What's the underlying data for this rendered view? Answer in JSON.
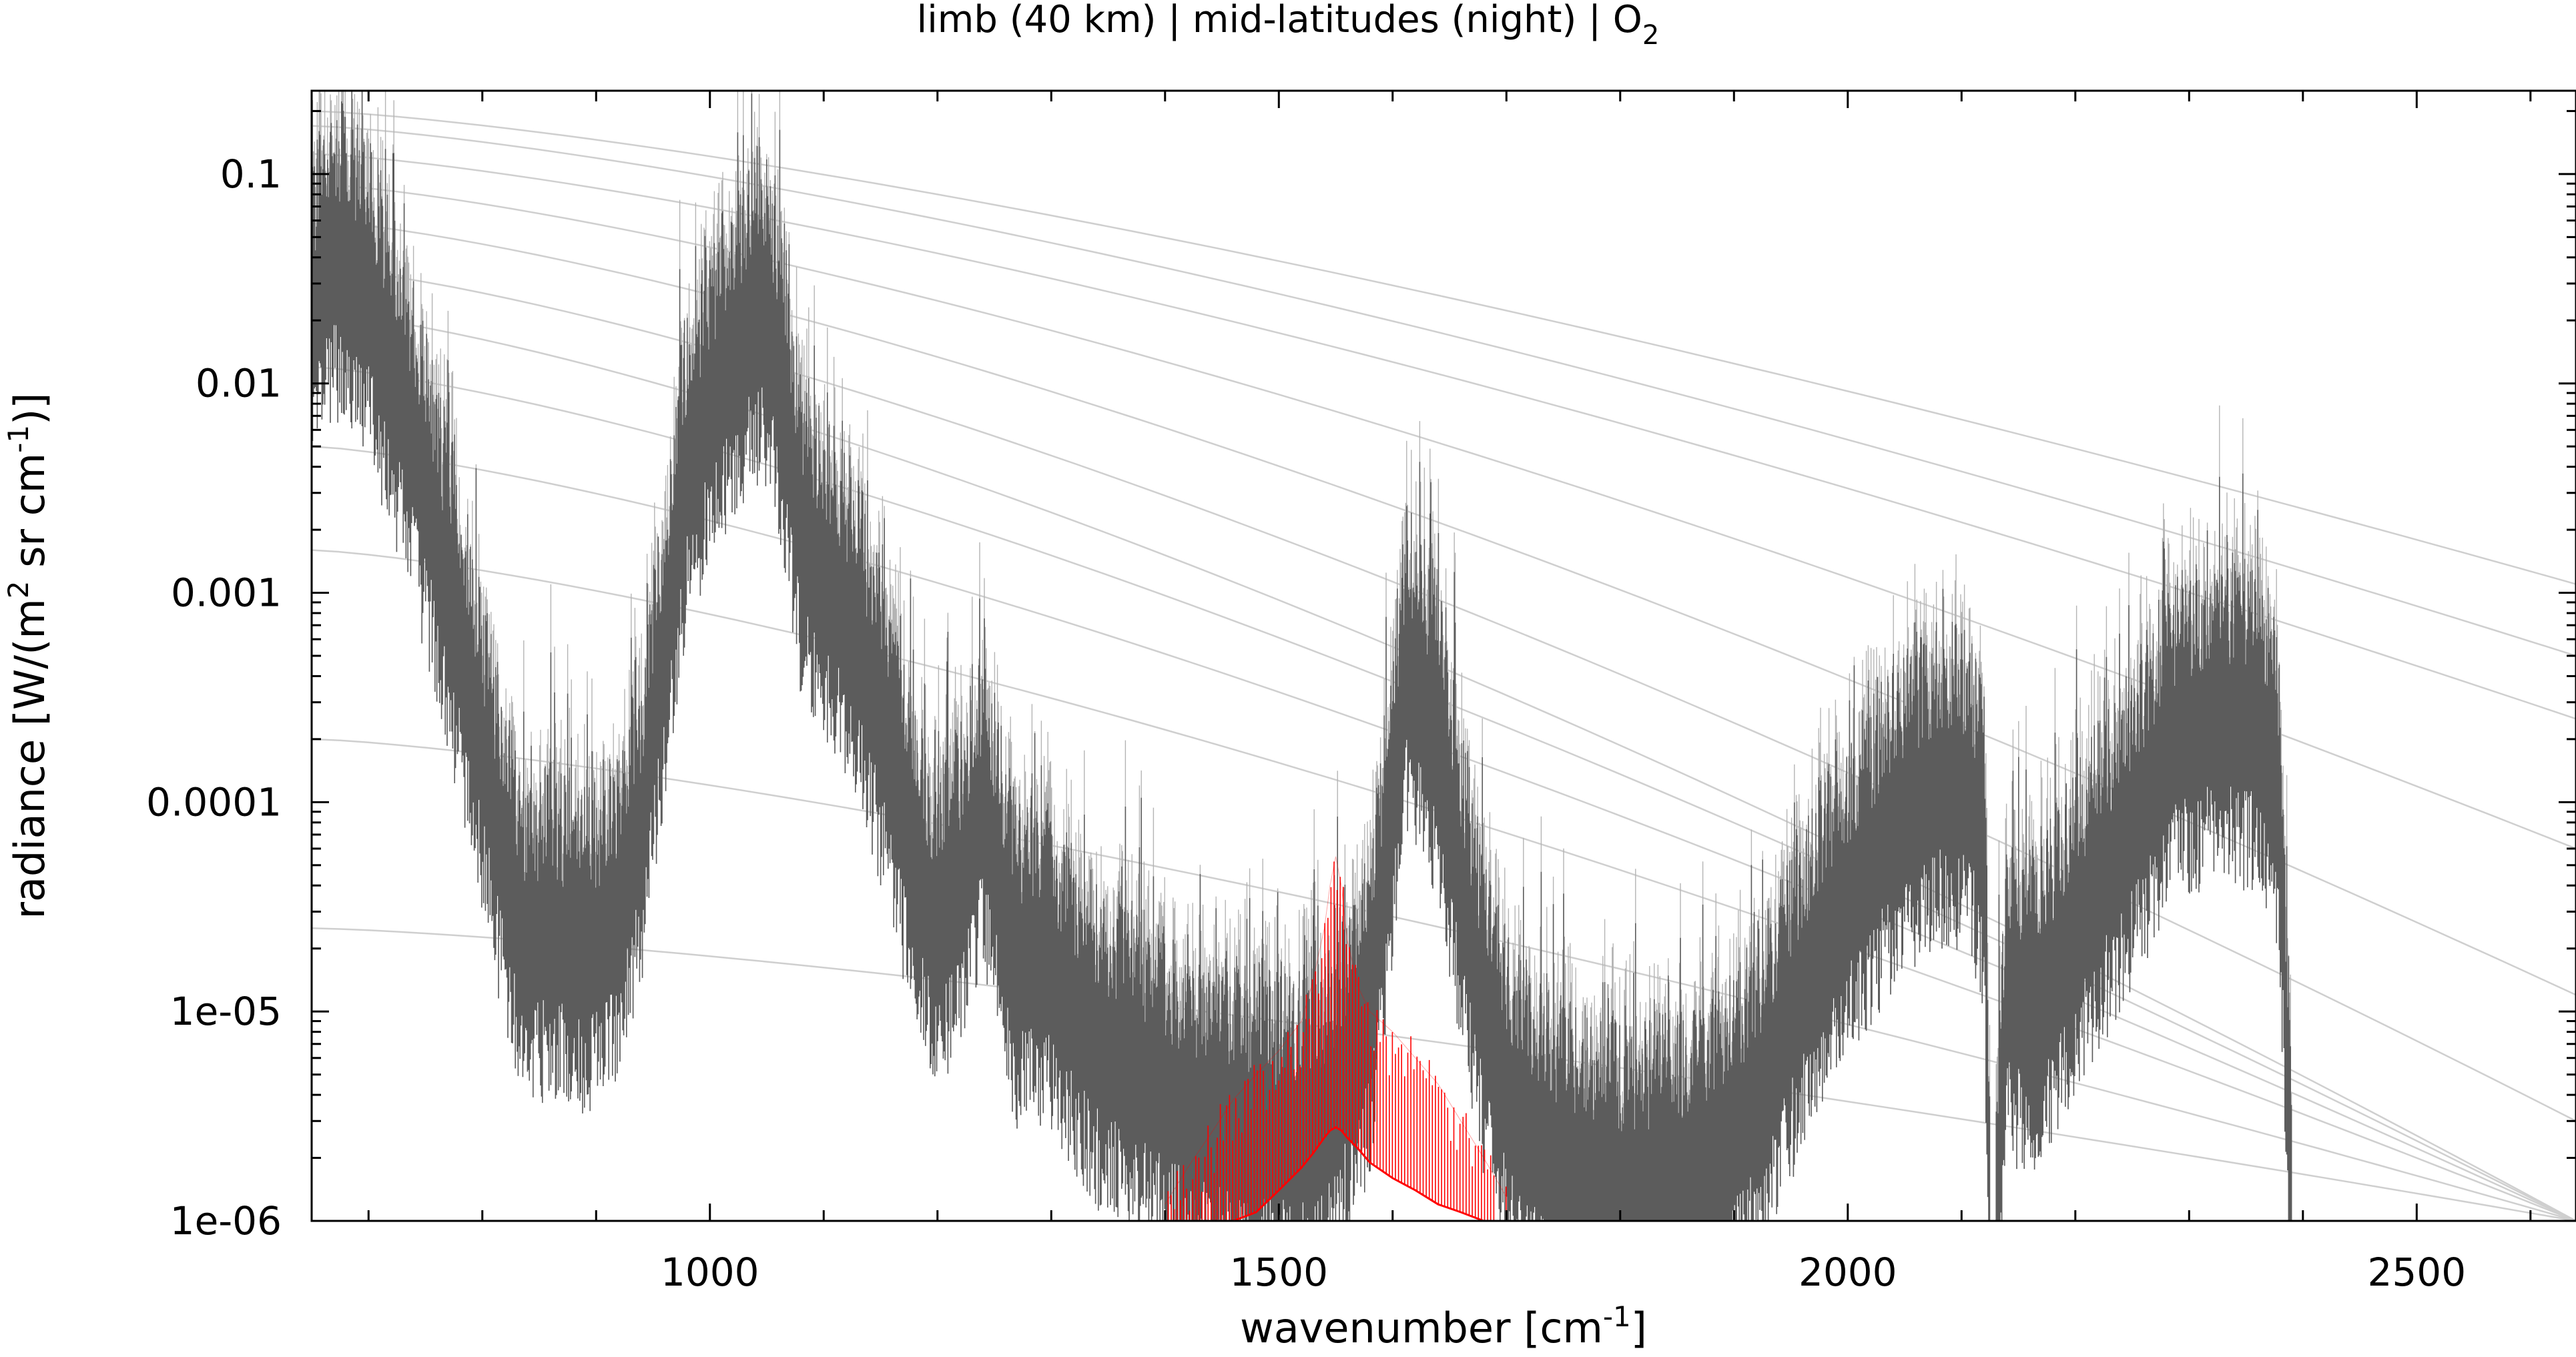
{
  "chart_data": {
    "type": "line",
    "title": {
      "main": "limb (40 km) | mid-latitudes (night) | O",
      "subscript": "2"
    },
    "xlabel": {
      "main": "wavenumber [cm",
      "superscript": "-1",
      "suffix": "]"
    },
    "ylabel": {
      "part1": "radiance [W/(m",
      "sup1": "2",
      "part2": " sr cm",
      "sup2": "-1",
      "part3": ")]"
    },
    "xlim": [
      650,
      2640
    ],
    "ylim": [
      1e-06,
      0.25
    ],
    "yscale": "log",
    "grid": false,
    "legend": "none",
    "x_ticks": [
      {
        "value": 1000,
        "label": "1000"
      },
      {
        "value": 1500,
        "label": "1500"
      },
      {
        "value": 2000,
        "label": "2000"
      },
      {
        "value": 2500,
        "label": "2500"
      }
    ],
    "y_ticks": [
      {
        "value": 0.1,
        "label": "0.1"
      },
      {
        "value": 0.01,
        "label": "0.01"
      },
      {
        "value": 0.001,
        "label": "0.001"
      },
      {
        "value": 0.0001,
        "label": "0.0001"
      },
      {
        "value": 1e-05,
        "label": "1e-05"
      },
      {
        "value": 1e-06,
        "label": "1e-06"
      }
    ],
    "colors": {
      "total_spectrum": "#5c5c5c",
      "total_spectrum_light": "#b4b4b4",
      "gas_spectrum": "#ff0000",
      "planck_curves": "#cfcfcf",
      "axis": "#000000"
    },
    "series": [
      {
        "role": "total",
        "x": [
          650,
          665,
          680,
          700,
          720,
          740,
          760,
          780,
          800,
          820,
          840,
          860,
          880,
          900,
          920,
          940,
          960,
          980,
          1000,
          1020,
          1040,
          1050,
          1060,
          1070,
          1080,
          1100,
          1120,
          1140,
          1160,
          1180,
          1200,
          1220,
          1240,
          1260,
          1270,
          1280,
          1300,
          1320,
          1340,
          1360,
          1380,
          1400,
          1420,
          1440,
          1460,
          1480,
          1500,
          1520,
          1540,
          1560,
          1580,
          1600,
          1610,
          1620,
          1640,
          1660,
          1680,
          1700,
          1720,
          1740,
          1760,
          1780,
          1800,
          1820,
          1840,
          1860,
          1880,
          1900,
          1920,
          1940,
          1960,
          1980,
          2000,
          2020,
          2040,
          2060,
          2080,
          2100,
          2110,
          2120,
          2125,
          2130,
          2140,
          2160,
          2180,
          2200,
          2220,
          2240,
          2260,
          2280,
          2300,
          2320,
          2340,
          2360,
          2370,
          2380,
          2390,
          2400,
          2420,
          2440,
          2460,
          2480,
          2500,
          2520,
          2540,
          2560,
          2580,
          2600,
          2620,
          2640
        ],
        "y_center": [
          0.02,
          0.04,
          0.04,
          0.025,
          0.012,
          0.005,
          0.0018,
          0.0006,
          0.00018,
          5e-05,
          2e-05,
          2.5e-05,
          2e-05,
          2e-05,
          3e-05,
          8e-05,
          0.0006,
          0.004,
          0.008,
          0.014,
          0.02,
          0.02,
          0.012,
          0.005,
          0.002,
          0.0012,
          0.0008,
          0.0004,
          0.00015,
          5e-05,
          2.5e-05,
          4e-05,
          0.0001,
          3e-05,
          1.5e-05,
          2e-05,
          1.5e-05,
          1e-05,
          7e-06,
          6e-06,
          5e-06,
          4e-06,
          3.5e-06,
          3e-06,
          2.8e-06,
          2.6e-06,
          2.5e-06,
          2.6e-06,
          3e-06,
          5e-06,
          1e-05,
          0.0001,
          0.0004,
          0.0004,
          0.0002,
          4e-05,
          1e-05,
          4e-06,
          2.5e-06,
          2e-06,
          1.8e-06,
          1.6e-06,
          1.5e-06,
          1.5e-06,
          1.6e-06,
          1.8e-06,
          2e-06,
          2.5e-06,
          4e-06,
          7e-06,
          1.3e-05,
          2.5e-05,
          3.5e-05,
          5e-05,
          8e-05,
          0.0001,
          0.00012,
          0.00012,
          0.0001,
          5e-05,
          1e-06,
          1e-06,
          1.2e-05,
          1e-05,
          1.5e-05,
          2.5e-05,
          4e-05,
          6e-05,
          0.0001,
          0.00018,
          0.00022,
          0.00025,
          0.00025,
          0.00022,
          0.00018,
          8e-05,
          1e-06,
          1e-06,
          1e-06,
          1e-06,
          1e-06,
          1e-06,
          1e-06,
          1e-06,
          1e-06,
          1e-06,
          1e-06,
          1e-06,
          1e-06,
          1e-06
        ]
      },
      {
        "role": "O2",
        "x": [
          1400,
          1420,
          1440,
          1460,
          1480,
          1500,
          1520,
          1530,
          1540,
          1545,
          1550,
          1555,
          1560,
          1570,
          1580,
          1600,
          1620,
          1640,
          1660,
          1680,
          1700
        ],
        "y_continuum": [
          1e-06,
          1e-06,
          1e-06,
          1e-06,
          1.1e-06,
          1.4e-06,
          1.8e-06,
          2.1e-06,
          2.5e-06,
          2.7e-06,
          2.8e-06,
          2.7e-06,
          2.5e-06,
          2.2e-06,
          1.9e-06,
          1.6e-06,
          1.4e-06,
          1.2e-06,
          1.1e-06,
          1e-06,
          1e-06
        ],
        "y_peak": [
          1.2e-06,
          1.8e-06,
          2.6e-06,
          3.8e-06,
          5e-06,
          6.5e-06,
          9e-06,
          1.4e-05,
          2.5e-05,
          4e-05,
          5.5e-05,
          4e-05,
          2.2e-05,
          1.3e-05,
          1e-05,
          8e-06,
          6e-06,
          4.5e-06,
          3e-06,
          2e-06,
          1.3e-06
        ]
      }
    ],
    "planck_curves": [
      {
        "x": [
          650,
          2640
        ],
        "y": [
          0.2,
          0.0011
        ]
      },
      {
        "x": [
          650,
          2640
        ],
        "y": [
          0.17,
          0.0005
        ]
      },
      {
        "x": [
          650,
          2640
        ],
        "y": [
          0.125,
          0.00025
        ]
      },
      {
        "x": [
          650,
          2640
        ],
        "y": [
          0.09,
          6e-05
        ]
      },
      {
        "x": [
          650,
          2640
        ],
        "y": [
          0.06,
          1.2e-05
        ]
      },
      {
        "x": [
          650,
          2640
        ],
        "y": [
          0.036,
          3e-06
        ]
      },
      {
        "x": [
          650,
          2640
        ],
        "y": [
          0.022,
          1e-06
        ]
      },
      {
        "x": [
          650,
          2640
        ],
        "y": [
          0.012,
          1e-06
        ]
      },
      {
        "x": [
          650,
          2640
        ],
        "y": [
          0.005,
          1e-06
        ]
      },
      {
        "x": [
          650,
          2640
        ],
        "y": [
          0.0016,
          1e-06
        ]
      },
      {
        "x": [
          650,
          2640
        ],
        "y": [
          0.0002,
          1e-06
        ]
      },
      {
        "x": [
          650,
          2640
        ],
        "y": [
          2.5e-05,
          1e-06
        ]
      }
    ]
  }
}
